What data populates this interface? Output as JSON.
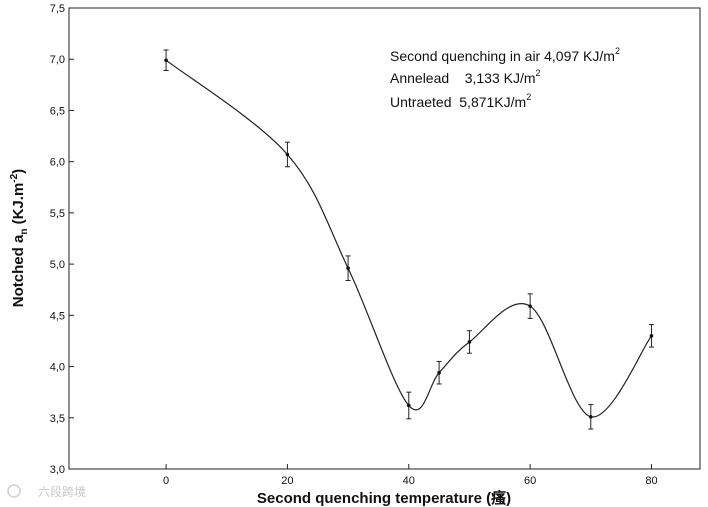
{
  "chart_data": {
    "type": "line",
    "title": "",
    "xlabel": "Second quenching temperature (瘙)",
    "ylabel_main": "Notched a",
    "ylabel_sub": "n",
    "ylabel_unit_open": " (KJ.m",
    "ylabel_unit_sup": "-2",
    "ylabel_unit_close": ")",
    "xlim": [
      -16,
      88
    ],
    "ylim": [
      3.0,
      7.5
    ],
    "xticks": [
      0,
      20,
      40,
      60,
      80
    ],
    "xtick_labels": [
      "0",
      "20",
      "40",
      "60",
      "80"
    ],
    "yticks": [
      3.0,
      3.5,
      4.0,
      4.5,
      5.0,
      5.5,
      6.0,
      6.5,
      7.0,
      7.5
    ],
    "ytick_labels": [
      "3,0",
      "3,5",
      "4,0",
      "4,5",
      "5,0",
      "5,5",
      "6,0",
      "6,5",
      "7,0",
      "7,5"
    ],
    "grid": false,
    "series": [
      {
        "x": [
          0,
          20,
          30,
          40,
          45,
          50,
          60,
          70,
          80
        ],
        "y": [
          6.99,
          6.07,
          4.96,
          3.62,
          3.94,
          4.24,
          4.59,
          3.51,
          4.3
        ],
        "error": [
          0.1,
          0.12,
          0.12,
          0.13,
          0.11,
          0.11,
          0.12,
          0.12,
          0.11
        ],
        "color": "#222222"
      }
    ],
    "legend": {
      "placement": "top-right",
      "entries": [
        {
          "text": "Second quenching in air 4,097 KJ/m",
          "sup": "2"
        },
        {
          "text": "Annelead    3,133 KJ/m",
          "sup": "2"
        },
        {
          "text": "Untraeted  5,871KJ/m",
          "sup": "2"
        }
      ]
    }
  },
  "watermark": {
    "text": "六段跨境"
  }
}
